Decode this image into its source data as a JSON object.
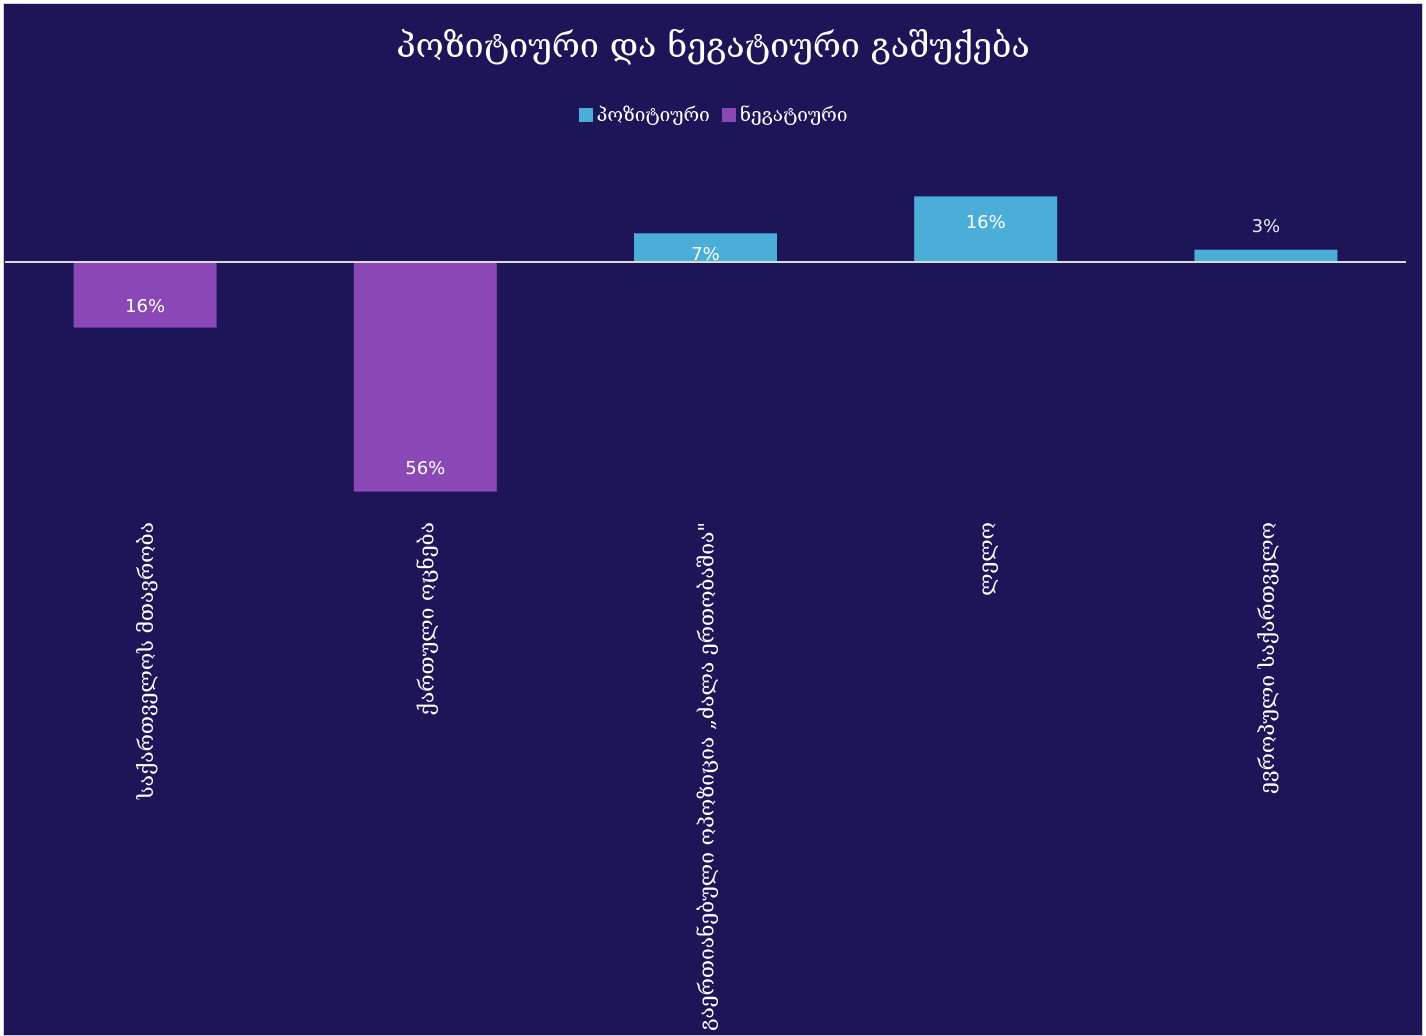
{
  "chart_data": {
    "type": "bar",
    "title": "პოზიტიური და ნეგატიური გაშუქება",
    "categories": [
      "საქართველოს მთავრობა",
      "ქართული ოცნება",
      "გაერთიანებული ოპოზიცია „ძალა ერთობაშია\"",
      "ლელო",
      "ევროპული საქართველო"
    ],
    "series": [
      {
        "name": "პოზიტიური",
        "color": "#4aaed9",
        "values": [
          0,
          0,
          7,
          16,
          3
        ]
      },
      {
        "name": "ნეგატიური",
        "color": "#8a48b6",
        "values": [
          -16,
          -56,
          0,
          0,
          0
        ]
      }
    ],
    "data_labels": [
      "16%",
      "56%",
      "7%",
      "16%",
      "3%"
    ],
    "ylim": [
      -56,
      16
    ],
    "legend_position": "top",
    "grid": false
  }
}
